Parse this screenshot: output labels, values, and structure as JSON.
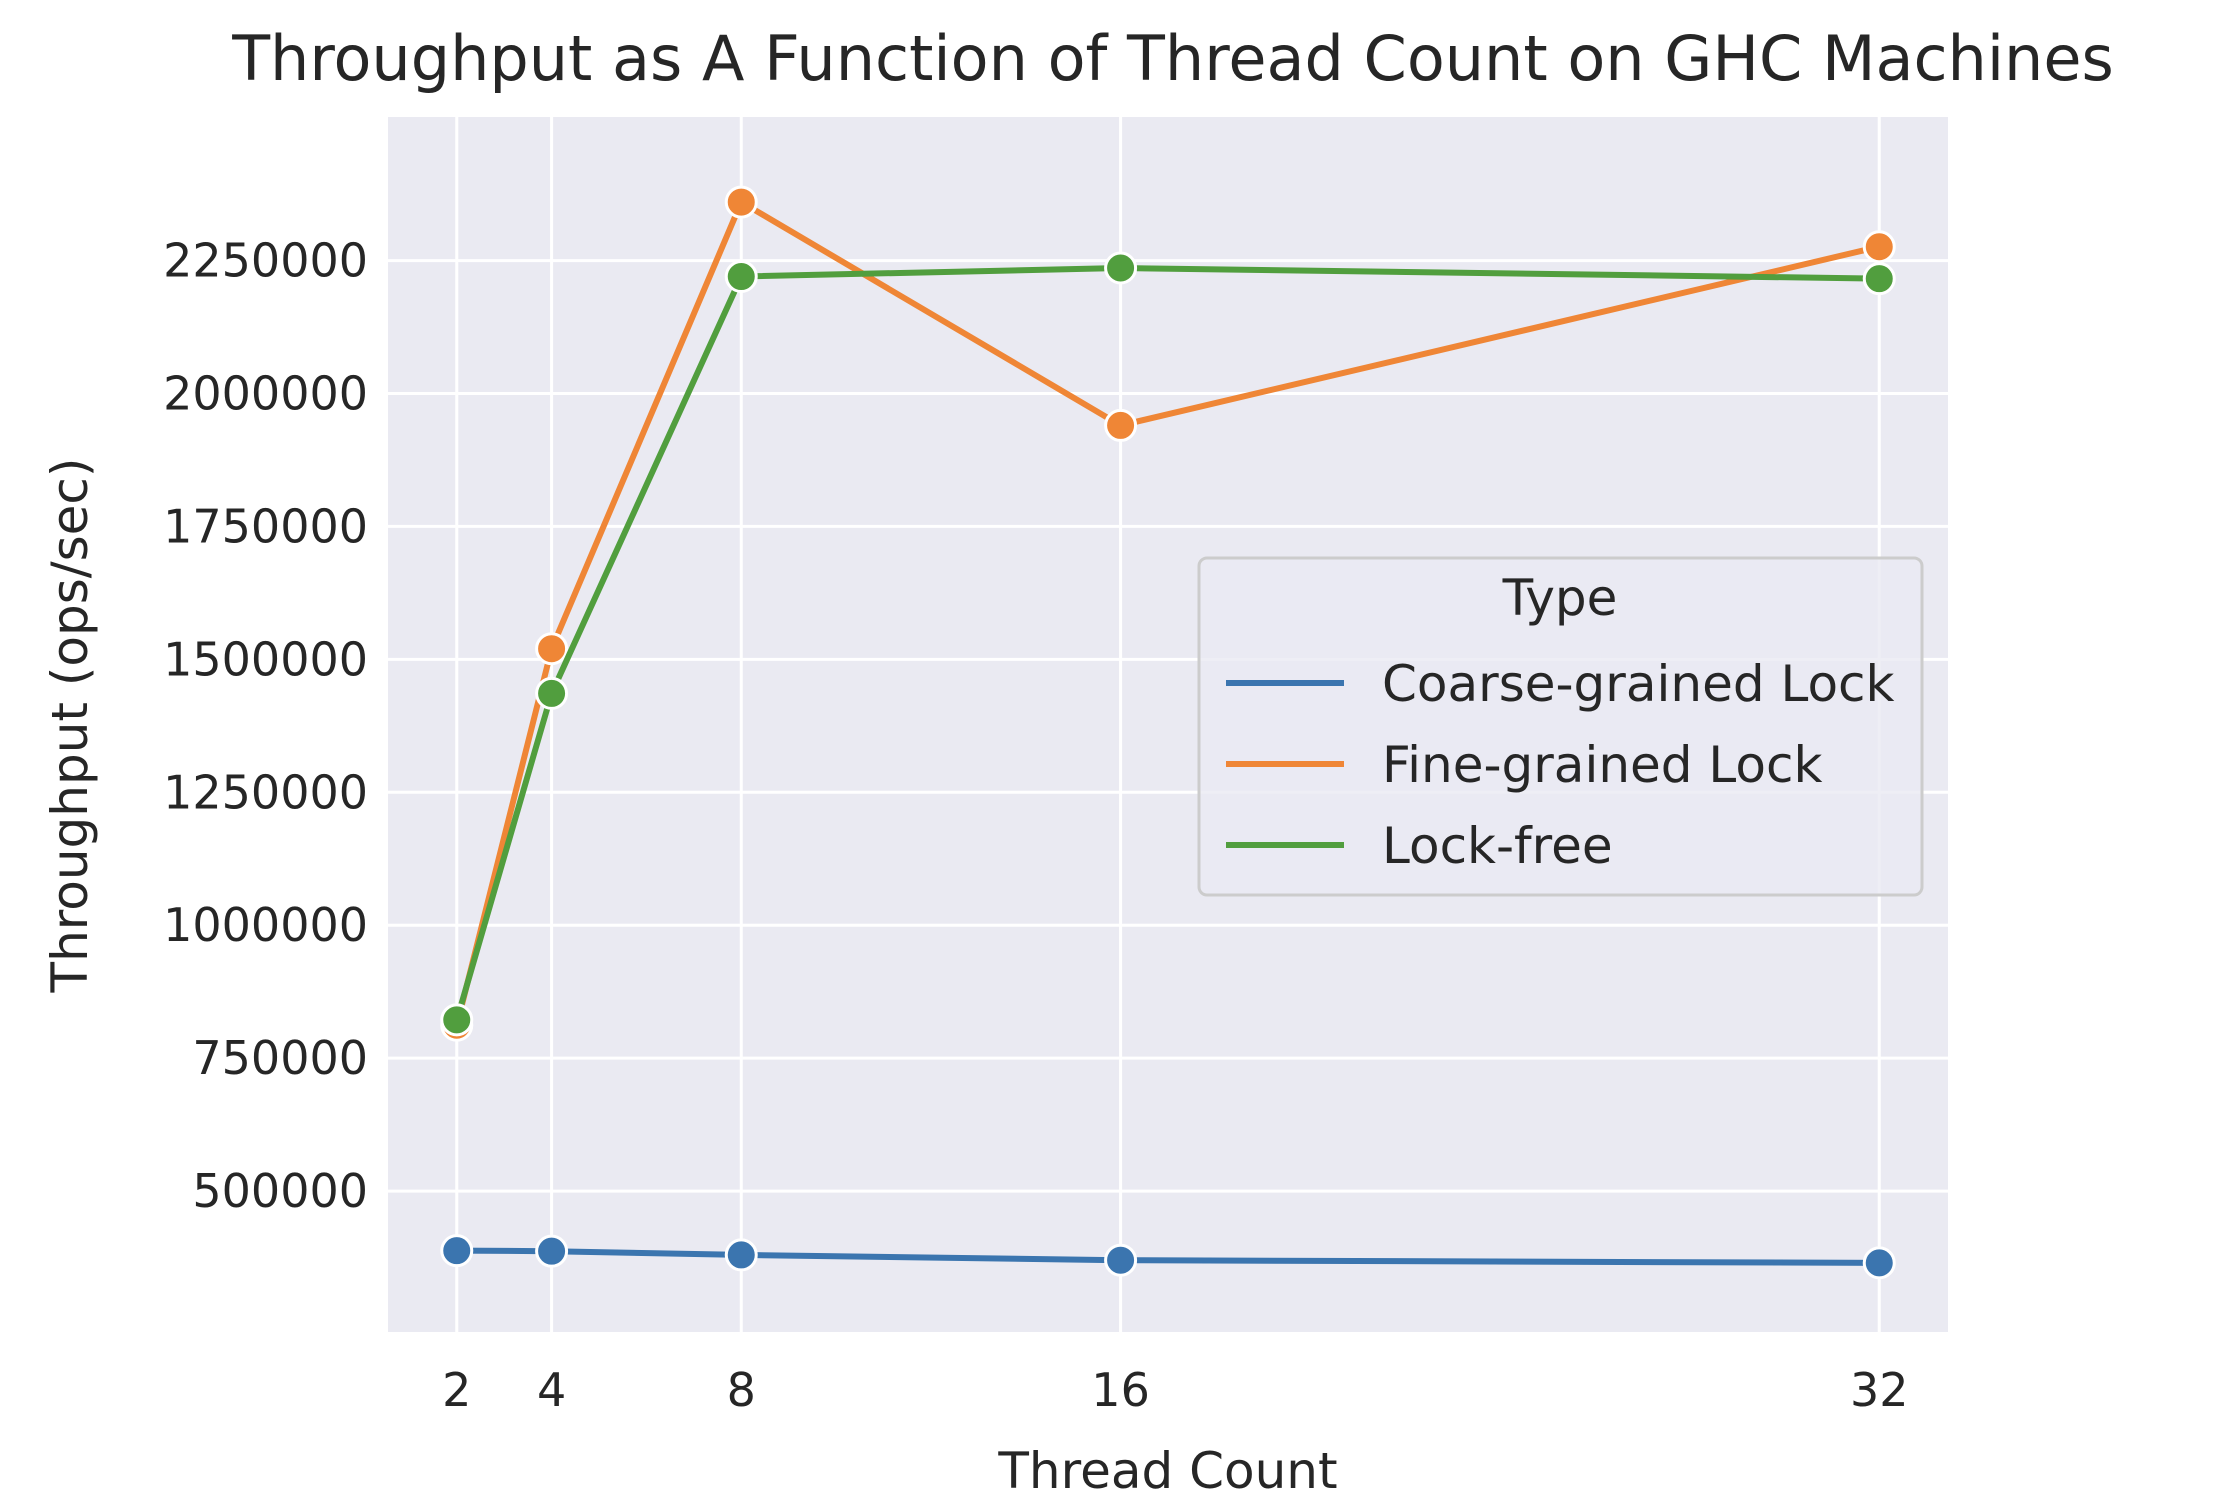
{
  "chart_data": {
    "type": "line",
    "title": "Throughput as A Function of Thread Count on GHC Machines",
    "xlabel": "Thread Count",
    "ylabel": "Throughput (ops/sec)",
    "x": [
      2,
      4,
      8,
      16,
      32
    ],
    "xticks": [
      "2",
      "4",
      "8",
      "16",
      "32"
    ],
    "xlim": [
      0.55,
      33.45
    ],
    "ylim": [
      235000,
      2520000
    ],
    "yticks": [
      "500000",
      "750000",
      "1000000",
      "1250000",
      "1500000",
      "1750000",
      "2000000",
      "2250000"
    ],
    "grid": true,
    "legend": {
      "title": "Type",
      "placement": "center-right"
    },
    "series": [
      {
        "name": "Coarse-grained Lock",
        "color": "#3b75af",
        "values": [
          388000,
          387000,
          380000,
          370000,
          365000
        ]
      },
      {
        "name": "Fine-grained Lock",
        "color": "#ef8636",
        "values": [
          812000,
          1520000,
          2360000,
          1940000,
          2276000
        ]
      },
      {
        "name": "Lock-free",
        "color": "#519e3e",
        "values": [
          822000,
          1436000,
          2220000,
          2236000,
          2216000
        ]
      }
    ]
  }
}
